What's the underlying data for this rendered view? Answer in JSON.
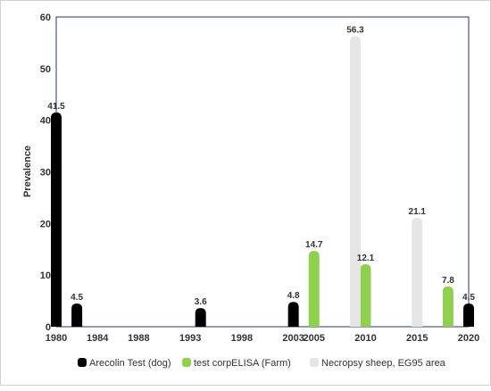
{
  "chart_data": {
    "type": "bar",
    "title": "",
    "xlabel": "",
    "ylabel": "Prevalence",
    "ylim": [
      0,
      60
    ],
    "yticks": [
      0,
      10,
      20,
      30,
      40,
      50,
      60
    ],
    "xlim": [
      1980,
      2020
    ],
    "xticks": [
      1980,
      1984,
      1988,
      1993,
      1998,
      2003,
      2005,
      2010,
      2015,
      2020
    ],
    "x_tick_labels": [
      "1980",
      "1984",
      "1988",
      "1993",
      "1998",
      "2003",
      "2005",
      "2010",
      "2015",
      "2020"
    ],
    "grid": false,
    "legend_position": "bottom",
    "series": [
      {
        "name": "Arecolin Test (dog)",
        "color": "#000000",
        "points": [
          {
            "x": 1980,
            "y": 41.5,
            "label": "41.5"
          },
          {
            "x": 1982,
            "y": 4.5,
            "label": "4.5"
          },
          {
            "x": 1994,
            "y": 3.6,
            "label": "3.6"
          },
          {
            "x": 2003,
            "y": 4.8,
            "label": "4.8"
          },
          {
            "x": 2020,
            "y": 4.5,
            "label": "4.5"
          }
        ]
      },
      {
        "name": "test corpELISA (Farm)",
        "color": "#8fd14f",
        "points": [
          {
            "x": 2005,
            "y": 14.7,
            "label": "14.7"
          },
          {
            "x": 2010,
            "y": 12.1,
            "label": "12.1"
          },
          {
            "x": 2018,
            "y": 7.8,
            "label": "7.8"
          }
        ]
      },
      {
        "name": "Necropsy sheep, EG95 area",
        "color": "#e7e6e6",
        "points": [
          {
            "x": 2009,
            "y": 56.3,
            "label": "56.3"
          },
          {
            "x": 2015,
            "y": 21.1,
            "label": "21.1"
          }
        ]
      }
    ]
  }
}
